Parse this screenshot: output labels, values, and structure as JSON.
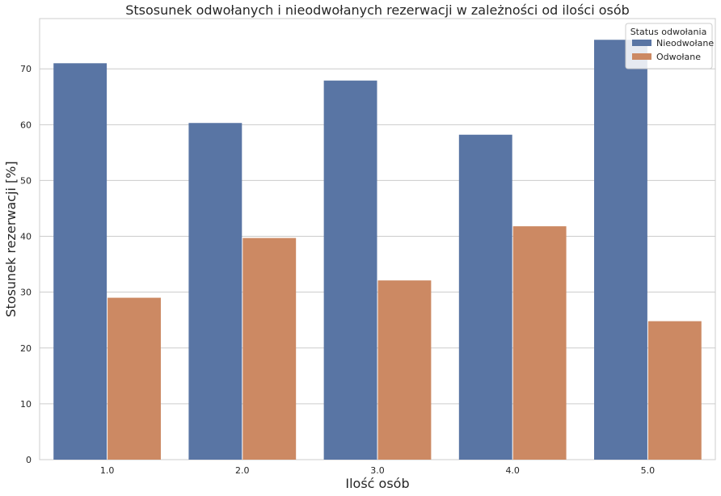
{
  "chart_data": {
    "type": "bar",
    "title": "Stsosunek odwołanych i nieodwołanych rezerwacji w zależności od ilości osób",
    "xlabel": "Ilość osób",
    "ylabel": "Stosunek rezerwacji [%]",
    "categories": [
      "1.0",
      "2.0",
      "3.0",
      "4.0",
      "5.0"
    ],
    "series": [
      {
        "name": "Nieodwołane",
        "color": "#5975a4",
        "values": [
          71.0,
          60.3,
          67.9,
          58.2,
          75.2
        ]
      },
      {
        "name": "Odwołane",
        "color": "#cc8963",
        "values": [
          29.0,
          39.7,
          32.1,
          41.8,
          24.8
        ]
      }
    ],
    "ylim": [
      0,
      79
    ],
    "yticks": [
      0,
      10,
      20,
      30,
      40,
      50,
      60,
      70
    ],
    "grid": true,
    "legend": {
      "title": "Status odwołania",
      "placement": "top-right"
    }
  }
}
